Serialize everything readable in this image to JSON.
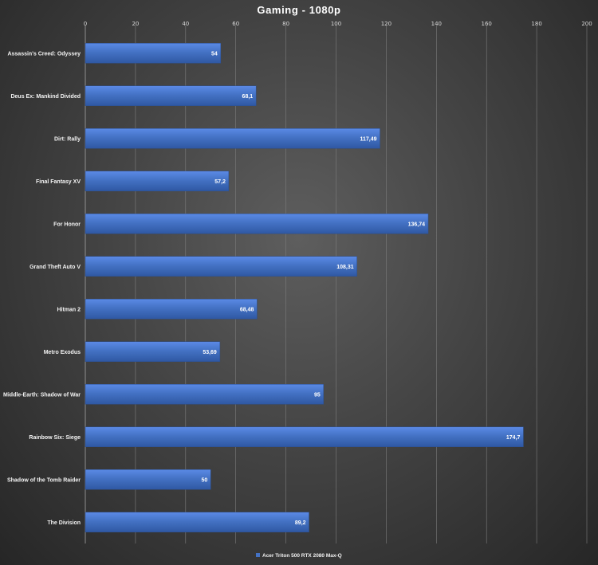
{
  "chart_data": {
    "type": "bar",
    "orientation": "horizontal",
    "title": "Gaming - 1080p",
    "categories": [
      "Assassin's Creed: Odyssey",
      "Deus Ex: Mankind Divided",
      "Dirt: Rally",
      "Final Fantasy XV",
      "For Honor",
      "Grand Theft Auto V",
      "Hitman 2",
      "Metro Exodus",
      "Middle-Earth: Shadow of War",
      "Rainbow Six: Siege",
      "Shadow of the Tomb Raider",
      "The Division"
    ],
    "series": [
      {
        "name": "Acer Triton 500 RTX 2080 Max-Q",
        "color": "#4472C4",
        "values": [
          54,
          68.1,
          117.49,
          57.2,
          136.74,
          108.31,
          68.48,
          53.69,
          95,
          174.7,
          50,
          89.2
        ],
        "labels": [
          "54",
          "68,1",
          "117,49",
          "57,2",
          "136,74",
          "108,31",
          "68,48",
          "53,69",
          "95",
          "174,7",
          "50",
          "89,2"
        ]
      }
    ],
    "xlim": [
      0,
      200
    ],
    "xticks": [
      "0",
      "20",
      "40",
      "60",
      "80",
      "100",
      "120",
      "140",
      "160",
      "180",
      "200"
    ],
    "grid": true,
    "legend_position": "bottom"
  }
}
